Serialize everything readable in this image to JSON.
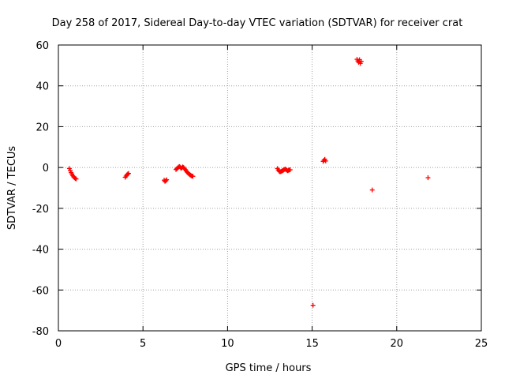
{
  "chart_data": {
    "type": "scatter",
    "title": "Day 258 of 2017, Sidereal Day-to-day VTEC variation (SDTVAR) for receiver crat",
    "xlabel": "GPS time / hours",
    "ylabel": "SDTVAR / TECUs",
    "xlim": [
      0,
      25
    ],
    "ylim": [
      -80,
      60
    ],
    "xticks": [
      0,
      5,
      10,
      15,
      20,
      25
    ],
    "yticks": [
      -80,
      -60,
      -40,
      -20,
      0,
      20,
      40,
      60
    ],
    "grid": true,
    "marker": "+",
    "color": "#ff0000",
    "series": [
      {
        "name": "SDTVAR",
        "x": [
          0.65,
          0.7,
          0.75,
          0.8,
          0.85,
          0.9,
          0.95,
          1.0,
          1.05,
          3.95,
          4.0,
          4.05,
          4.1,
          4.15,
          6.25,
          6.3,
          6.35,
          6.4,
          6.95,
          7.0,
          7.05,
          7.1,
          7.15,
          7.2,
          7.25,
          7.3,
          7.35,
          7.4,
          7.45,
          7.5,
          7.55,
          7.6,
          7.65,
          7.7,
          7.75,
          7.8,
          7.85,
          7.9,
          7.95,
          12.95,
          13.0,
          13.05,
          13.1,
          13.15,
          13.2,
          13.25,
          13.3,
          13.35,
          13.4,
          13.45,
          13.5,
          13.55,
          13.6,
          13.65,
          13.7,
          15.05,
          15.65,
          15.7,
          15.75,
          15.8,
          17.65,
          17.7,
          17.75,
          17.8,
          17.85,
          17.9,
          18.55,
          21.85
        ],
        "y": [
          -0.5,
          -1.5,
          -2.5,
          -3.2,
          -4.0,
          -4.6,
          -5.0,
          -5.4,
          -5.6,
          -4.8,
          -4.2,
          -3.6,
          -3.2,
          -2.9,
          -6.2,
          -6.8,
          -6.5,
          -6.0,
          -1.0,
          -0.6,
          -0.2,
          0.2,
          0.5,
          0.2,
          -0.4,
          -0.1,
          0.3,
          0.0,
          -0.5,
          -1.0,
          -1.6,
          -2.2,
          -2.6,
          -3.0,
          -3.4,
          -3.7,
          -4.0,
          -4.2,
          -4.3,
          -0.5,
          -1.2,
          -1.8,
          -2.1,
          -2.0,
          -1.8,
          -1.5,
          -1.3,
          -1.0,
          -0.8,
          -1.0,
          -1.3,
          -1.6,
          -1.4,
          -1.2,
          -1.1,
          -67.5,
          3.0,
          3.6,
          4.0,
          3.2,
          53.0,
          52.2,
          51.5,
          52.8,
          51.0,
          52.0,
          -11.0,
          -5.0
        ]
      }
    ]
  }
}
